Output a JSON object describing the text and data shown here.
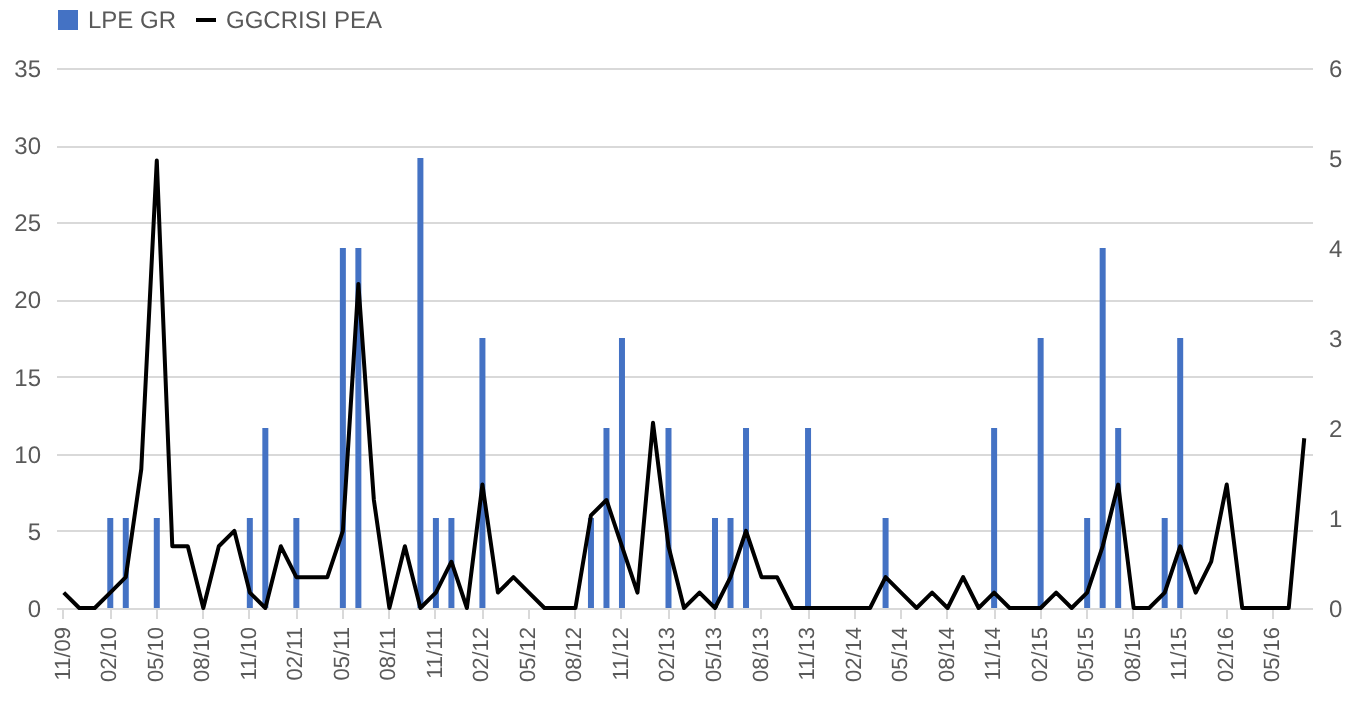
{
  "chart_data": {
    "type": "bar",
    "categories": [
      "11/09",
      null,
      null,
      "02/10",
      null,
      null,
      "05/10",
      null,
      null,
      "08/10",
      null,
      null,
      "11/10",
      null,
      null,
      "02/11",
      null,
      null,
      "05/11",
      null,
      null,
      "08/11",
      null,
      null,
      "11/11",
      null,
      null,
      "02/12",
      null,
      null,
      "05/12",
      null,
      null,
      "08/12",
      null,
      null,
      "11/12",
      null,
      null,
      "02/13",
      null,
      null,
      "05/13",
      null,
      null,
      "08/13",
      null,
      null,
      "11/13",
      null,
      null,
      "02/14",
      null,
      null,
      "05/14",
      null,
      null,
      "08/14",
      null,
      null,
      "11/14",
      null,
      null,
      "02/15",
      null,
      null,
      "05/15",
      null,
      null,
      "08/15",
      null,
      null,
      "11/15",
      null,
      null,
      "02/16",
      null,
      null,
      "05/16",
      null,
      null
    ],
    "series": [
      {
        "name": "LPE GR",
        "axis": "y2",
        "color": "#4472c4",
        "values": [
          null,
          null,
          null,
          1,
          1,
          null,
          1,
          null,
          null,
          null,
          null,
          null,
          1,
          2,
          null,
          1,
          null,
          null,
          4,
          4,
          null,
          null,
          null,
          5,
          1,
          1,
          null,
          3,
          null,
          null,
          null,
          null,
          null,
          null,
          1,
          2,
          3,
          null,
          null,
          2,
          null,
          null,
          1,
          1,
          2,
          null,
          null,
          null,
          2,
          null,
          null,
          null,
          null,
          1,
          null,
          null,
          null,
          null,
          null,
          null,
          2,
          null,
          null,
          3,
          null,
          null,
          1,
          4,
          2,
          null,
          null,
          1,
          3,
          null,
          null,
          null,
          null,
          null,
          null,
          null,
          null
        ]
      },
      {
        "name": "GGCRISI PEA",
        "type": "line",
        "color": "#000000",
        "values": [
          1,
          0,
          0,
          1,
          2,
          9,
          29,
          4,
          4,
          0,
          4,
          5,
          1,
          0,
          4,
          2,
          2,
          2,
          5,
          21,
          7,
          0,
          4,
          0,
          1,
          3,
          0,
          8,
          1,
          2,
          1,
          0,
          0,
          0,
          6,
          7,
          4,
          1,
          12,
          4,
          0,
          1,
          0,
          2,
          5,
          2,
          2,
          0,
          0,
          0,
          0,
          0,
          0,
          2,
          1,
          0,
          1,
          0,
          2,
          0,
          1,
          0,
          0,
          0,
          1,
          0,
          1,
          4,
          8,
          0,
          0,
          1,
          4,
          1,
          3,
          8,
          0,
          0,
          0,
          0,
          11
        ]
      }
    ],
    "ylim": [
      0,
      35
    ],
    "yticks": [
      0,
      5,
      10,
      15,
      20,
      25,
      30,
      35
    ],
    "y2lim": [
      0,
      6
    ],
    "y2ticks": [
      0,
      1,
      2,
      3,
      4,
      5,
      6
    ],
    "grid": "y",
    "legend": "top"
  }
}
